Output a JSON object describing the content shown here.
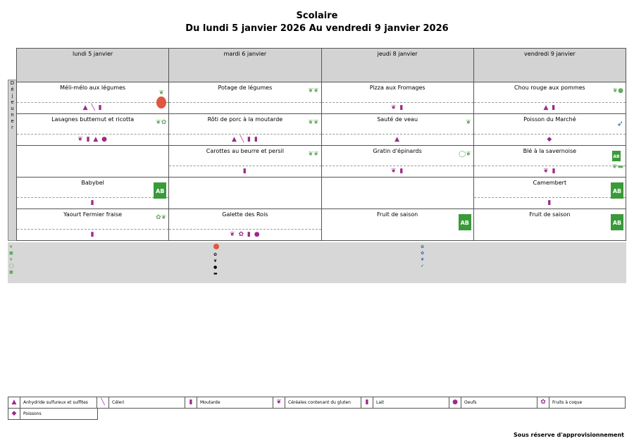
{
  "title": "Scolaire",
  "subtitle": "Du lundi 5 janvier 2026 Au vendredi 9 janvier 2026",
  "meal_label": "Déjeuner",
  "days": [
    "lundi 5 janvier",
    "mardi 6 janvier",
    "jeudi 8 janvier",
    "vendredi 9 janvier"
  ],
  "rows": [
    [
      "Méli-mélo aux légumes",
      "Potage de légumes",
      "Pizza aux Fromages",
      "Chou rouge aux pommes"
    ],
    [
      "Lasagnes butternut et ricotta",
      "Rôti de porc à la moutarde",
      "Sauté de veau",
      "Poisson du Marché"
    ],
    [
      "",
      "Carottes au beurre et persil",
      "Gratin d'épinards",
      "Blé à la savernoise"
    ],
    [
      "Babybel",
      "",
      "",
      "Camembert"
    ],
    [
      "Yaourt Fermier fraise",
      "Galette des Rois",
      "Fruit de saison",
      "Fruit de saison"
    ]
  ],
  "bio_label": "AB",
  "legend": [
    "Anhydride sulfureux et sulfites",
    "Céleri",
    "Moutarde",
    "Céréales contenant du gluten",
    "Lait",
    "Oeufs",
    "Fruits à coque",
    "Poissons"
  ],
  "footer": "Sous réserve d'approvisionnement"
}
